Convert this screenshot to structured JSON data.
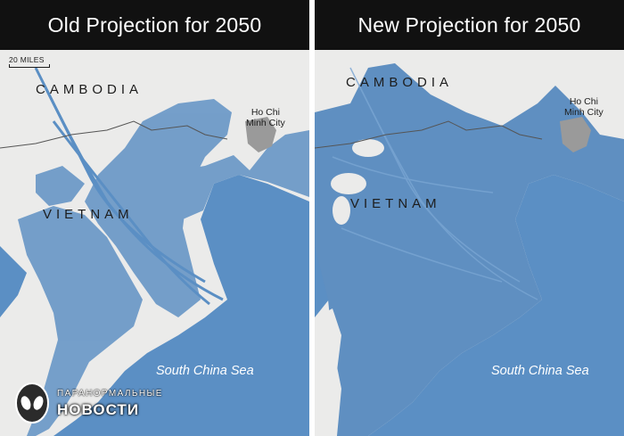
{
  "colors": {
    "land": "#ebebea",
    "water": "#5b8fc4",
    "flood": "#5f8fc1",
    "urban": "#9a9a9a",
    "border": "#555555",
    "header": "#111111"
  },
  "left_panel": {
    "title": "Old Projection for 2050",
    "scale_label": "20 MILES",
    "country_1": "CAMBODIA",
    "country_2": "VIETNAM",
    "city_line1": "Ho Chi",
    "city_line2": "Minh City",
    "sea_label": "South China Sea"
  },
  "right_panel": {
    "title": "New Projection for 2050",
    "country_1": "CAMBODIA",
    "country_2": "VIETNAM",
    "city_line1": "Ho Chi",
    "city_line2": "Minh City",
    "sea_label": "South China Sea"
  },
  "watermark": {
    "top_text": "ПАРАНОРМАЛЬНЫЕ",
    "bottom_text": "НОВОСТИ"
  }
}
